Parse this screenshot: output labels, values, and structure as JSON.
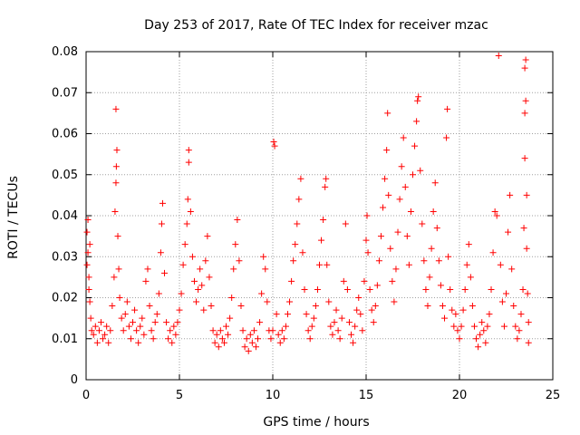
{
  "chart_data": {
    "type": "scatter",
    "title": "Day 253 of 2017, Rate Of TEC Index for receiver mzac",
    "xlabel": "GPS time / hours",
    "ylabel": "ROTI / TECUs",
    "xlim": [
      0,
      25
    ],
    "ylim": [
      0,
      0.08
    ],
    "xticks": [
      "0",
      "5",
      "10",
      "15",
      "20",
      "25"
    ],
    "yticks": [
      "0",
      "0.01",
      "0.02",
      "0.03",
      "0.04",
      "0.05",
      "0.06",
      "0.07",
      "0.08"
    ],
    "xtick_values": [
      0,
      5,
      10,
      15,
      20,
      25
    ],
    "ytick_values": [
      0,
      0.01,
      0.02,
      0.03,
      0.04,
      0.05,
      0.06,
      0.07,
      0.08
    ],
    "grid": true,
    "marker": "+",
    "marker_color": "#ff0000",
    "series": [
      {
        "name": "ROTI",
        "points": [
          [
            0.05,
            0.036
          ],
          [
            0.1,
            0.031
          ],
          [
            0.15,
            0.025
          ],
          [
            0.2,
            0.019
          ],
          [
            0.25,
            0.015
          ],
          [
            0.3,
            0.012
          ],
          [
            0.1,
            0.039
          ],
          [
            0.05,
            0.028
          ],
          [
            0.2,
            0.033
          ],
          [
            0.15,
            0.022
          ],
          [
            0.4,
            0.011
          ],
          [
            0.5,
            0.013
          ],
          [
            0.6,
            0.009
          ],
          [
            0.7,
            0.012
          ],
          [
            0.8,
            0.014
          ],
          [
            0.9,
            0.01
          ],
          [
            1.0,
            0.011
          ],
          [
            1.1,
            0.013
          ],
          [
            1.2,
            0.009
          ],
          [
            1.3,
            0.012
          ],
          [
            1.4,
            0.018
          ],
          [
            1.5,
            0.025
          ],
          [
            1.55,
            0.041
          ],
          [
            1.6,
            0.048
          ],
          [
            1.62,
            0.052
          ],
          [
            1.65,
            0.056
          ],
          [
            1.6,
            0.066
          ],
          [
            1.7,
            0.035
          ],
          [
            1.75,
            0.027
          ],
          [
            1.8,
            0.02
          ],
          [
            1.9,
            0.015
          ],
          [
            2.0,
            0.012
          ],
          [
            2.1,
            0.016
          ],
          [
            2.2,
            0.019
          ],
          [
            2.3,
            0.013
          ],
          [
            2.4,
            0.01
          ],
          [
            2.5,
            0.014
          ],
          [
            2.6,
            0.017
          ],
          [
            2.7,
            0.012
          ],
          [
            2.8,
            0.009
          ],
          [
            2.9,
            0.013
          ],
          [
            3.0,
            0.015
          ],
          [
            3.1,
            0.011
          ],
          [
            3.2,
            0.024
          ],
          [
            3.3,
            0.027
          ],
          [
            3.4,
            0.018
          ],
          [
            3.5,
            0.012
          ],
          [
            3.6,
            0.01
          ],
          [
            3.7,
            0.014
          ],
          [
            3.8,
            0.016
          ],
          [
            3.9,
            0.021
          ],
          [
            4.0,
            0.031
          ],
          [
            4.05,
            0.038
          ],
          [
            4.1,
            0.043
          ],
          [
            4.2,
            0.026
          ],
          [
            4.3,
            0.014
          ],
          [
            4.4,
            0.01
          ],
          [
            4.5,
            0.012
          ],
          [
            4.6,
            0.009
          ],
          [
            4.7,
            0.013
          ],
          [
            4.8,
            0.011
          ],
          [
            4.9,
            0.014
          ],
          [
            5.0,
            0.017
          ],
          [
            5.1,
            0.021
          ],
          [
            5.2,
            0.028
          ],
          [
            5.3,
            0.033
          ],
          [
            5.4,
            0.038
          ],
          [
            5.45,
            0.044
          ],
          [
            5.5,
            0.053
          ],
          [
            5.5,
            0.056
          ],
          [
            5.6,
            0.041
          ],
          [
            5.7,
            0.03
          ],
          [
            5.8,
            0.024
          ],
          [
            5.9,
            0.019
          ],
          [
            6.0,
            0.022
          ],
          [
            6.1,
            0.027
          ],
          [
            6.2,
            0.023
          ],
          [
            6.3,
            0.017
          ],
          [
            6.4,
            0.029
          ],
          [
            6.5,
            0.035
          ],
          [
            6.6,
            0.025
          ],
          [
            6.7,
            0.018
          ],
          [
            6.8,
            0.012
          ],
          [
            6.9,
            0.009
          ],
          [
            7.0,
            0.011
          ],
          [
            7.1,
            0.008
          ],
          [
            7.2,
            0.012
          ],
          [
            7.3,
            0.01
          ],
          [
            7.4,
            0.009
          ],
          [
            7.5,
            0.013
          ],
          [
            7.6,
            0.011
          ],
          [
            7.7,
            0.015
          ],
          [
            7.8,
            0.02
          ],
          [
            7.9,
            0.027
          ],
          [
            8.0,
            0.033
          ],
          [
            8.1,
            0.039
          ],
          [
            8.2,
            0.029
          ],
          [
            8.3,
            0.018
          ],
          [
            8.4,
            0.012
          ],
          [
            8.5,
            0.008
          ],
          [
            8.6,
            0.01
          ],
          [
            8.7,
            0.007
          ],
          [
            8.8,
            0.011
          ],
          [
            8.9,
            0.009
          ],
          [
            9.0,
            0.012
          ],
          [
            9.1,
            0.008
          ],
          [
            9.2,
            0.01
          ],
          [
            9.3,
            0.014
          ],
          [
            9.4,
            0.021
          ],
          [
            9.5,
            0.03
          ],
          [
            9.6,
            0.027
          ],
          [
            9.7,
            0.019
          ],
          [
            9.8,
            0.012
          ],
          [
            9.9,
            0.01
          ],
          [
            10.0,
            0.012
          ],
          [
            10.05,
            0.058
          ],
          [
            10.1,
            0.057
          ],
          [
            10.2,
            0.016
          ],
          [
            10.3,
            0.011
          ],
          [
            10.4,
            0.009
          ],
          [
            10.5,
            0.012
          ],
          [
            10.6,
            0.01
          ],
          [
            10.7,
            0.013
          ],
          [
            10.8,
            0.016
          ],
          [
            10.9,
            0.019
          ],
          [
            11.0,
            0.024
          ],
          [
            11.1,
            0.029
          ],
          [
            11.2,
            0.033
          ],
          [
            11.3,
            0.038
          ],
          [
            11.4,
            0.044
          ],
          [
            11.5,
            0.049
          ],
          [
            11.6,
            0.031
          ],
          [
            11.7,
            0.022
          ],
          [
            11.8,
            0.016
          ],
          [
            11.9,
            0.012
          ],
          [
            12.0,
            0.01
          ],
          [
            12.1,
            0.013
          ],
          [
            12.2,
            0.015
          ],
          [
            12.3,
            0.018
          ],
          [
            12.4,
            0.022
          ],
          [
            12.5,
            0.028
          ],
          [
            12.6,
            0.034
          ],
          [
            12.7,
            0.039
          ],
          [
            12.8,
            0.047
          ],
          [
            12.85,
            0.049
          ],
          [
            12.9,
            0.028
          ],
          [
            13.0,
            0.019
          ],
          [
            13.1,
            0.013
          ],
          [
            13.2,
            0.011
          ],
          [
            13.3,
            0.014
          ],
          [
            13.4,
            0.017
          ],
          [
            13.5,
            0.012
          ],
          [
            13.6,
            0.01
          ],
          [
            13.7,
            0.015
          ],
          [
            13.8,
            0.024
          ],
          [
            13.9,
            0.038
          ],
          [
            14.0,
            0.022
          ],
          [
            14.1,
            0.014
          ],
          [
            14.2,
            0.011
          ],
          [
            14.3,
            0.009
          ],
          [
            14.4,
            0.013
          ],
          [
            14.5,
            0.017
          ],
          [
            14.6,
            0.02
          ],
          [
            14.7,
            0.016
          ],
          [
            14.8,
            0.012
          ],
          [
            14.9,
            0.024
          ],
          [
            15.0,
            0.034
          ],
          [
            15.05,
            0.04
          ],
          [
            15.1,
            0.031
          ],
          [
            15.2,
            0.022
          ],
          [
            15.3,
            0.017
          ],
          [
            15.4,
            0.014
          ],
          [
            15.5,
            0.018
          ],
          [
            15.6,
            0.023
          ],
          [
            15.7,
            0.029
          ],
          [
            15.8,
            0.035
          ],
          [
            15.9,
            0.042
          ],
          [
            16.0,
            0.049
          ],
          [
            16.1,
            0.056
          ],
          [
            16.15,
            0.065
          ],
          [
            16.2,
            0.045
          ],
          [
            16.3,
            0.032
          ],
          [
            16.4,
            0.024
          ],
          [
            16.5,
            0.019
          ],
          [
            16.6,
            0.027
          ],
          [
            16.7,
            0.036
          ],
          [
            16.8,
            0.044
          ],
          [
            16.9,
            0.052
          ],
          [
            17.0,
            0.059
          ],
          [
            17.1,
            0.047
          ],
          [
            17.2,
            0.035
          ],
          [
            17.3,
            0.028
          ],
          [
            17.4,
            0.041
          ],
          [
            17.5,
            0.05
          ],
          [
            17.6,
            0.057
          ],
          [
            17.7,
            0.063
          ],
          [
            17.75,
            0.068
          ],
          [
            17.8,
            0.069
          ],
          [
            17.9,
            0.051
          ],
          [
            18.0,
            0.038
          ],
          [
            18.1,
            0.029
          ],
          [
            18.2,
            0.022
          ],
          [
            18.3,
            0.018
          ],
          [
            18.4,
            0.025
          ],
          [
            18.5,
            0.032
          ],
          [
            18.6,
            0.041
          ],
          [
            18.7,
            0.048
          ],
          [
            18.8,
            0.037
          ],
          [
            18.9,
            0.029
          ],
          [
            19.0,
            0.023
          ],
          [
            19.1,
            0.018
          ],
          [
            19.2,
            0.015
          ],
          [
            19.3,
            0.059
          ],
          [
            19.35,
            0.066
          ],
          [
            19.4,
            0.03
          ],
          [
            19.5,
            0.022
          ],
          [
            19.6,
            0.017
          ],
          [
            19.7,
            0.013
          ],
          [
            19.8,
            0.016
          ],
          [
            19.9,
            0.012
          ],
          [
            20.0,
            0.01
          ],
          [
            20.1,
            0.013
          ],
          [
            20.2,
            0.017
          ],
          [
            20.3,
            0.022
          ],
          [
            20.4,
            0.028
          ],
          [
            20.5,
            0.033
          ],
          [
            20.6,
            0.025
          ],
          [
            20.7,
            0.018
          ],
          [
            20.8,
            0.013
          ],
          [
            20.9,
            0.01
          ],
          [
            21.0,
            0.008
          ],
          [
            21.1,
            0.011
          ],
          [
            21.2,
            0.014
          ],
          [
            21.3,
            0.012
          ],
          [
            21.4,
            0.009
          ],
          [
            21.5,
            0.013
          ],
          [
            21.6,
            0.016
          ],
          [
            21.7,
            0.022
          ],
          [
            21.8,
            0.031
          ],
          [
            21.9,
            0.041
          ],
          [
            22.0,
            0.04
          ],
          [
            22.1,
            0.079
          ],
          [
            22.2,
            0.028
          ],
          [
            22.3,
            0.019
          ],
          [
            22.4,
            0.013
          ],
          [
            22.5,
            0.021
          ],
          [
            22.6,
            0.036
          ],
          [
            22.7,
            0.045
          ],
          [
            22.8,
            0.027
          ],
          [
            22.9,
            0.018
          ],
          [
            23.0,
            0.013
          ],
          [
            23.1,
            0.01
          ],
          [
            23.2,
            0.012
          ],
          [
            23.3,
            0.016
          ],
          [
            23.4,
            0.022
          ],
          [
            23.45,
            0.037
          ],
          [
            23.5,
            0.054
          ],
          [
            23.5,
            0.065
          ],
          [
            23.55,
            0.068
          ],
          [
            23.5,
            0.076
          ],
          [
            23.55,
            0.078
          ],
          [
            23.6,
            0.045
          ],
          [
            23.6,
            0.032
          ],
          [
            23.65,
            0.021
          ],
          [
            23.7,
            0.014
          ],
          [
            23.7,
            0.009
          ]
        ]
      }
    ]
  }
}
